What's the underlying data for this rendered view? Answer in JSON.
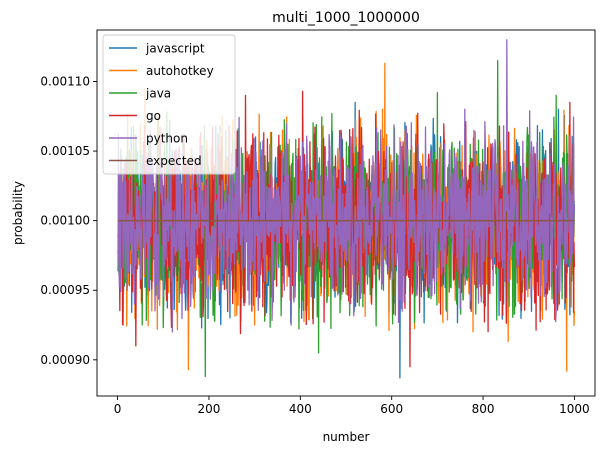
{
  "chart_data": {
    "type": "line",
    "title": "multi_1000_1000000",
    "xlabel": "number",
    "ylabel": "probability",
    "xlim": [
      -45,
      1045
    ],
    "ylim": [
      0.000874,
      0.001137
    ],
    "xticks": [
      0,
      200,
      400,
      600,
      800,
      1000
    ],
    "xtick_labels": [
      "0",
      "200",
      "400",
      "600",
      "800",
      "1000"
    ],
    "yticks": [
      0.0009,
      0.00095,
      0.001,
      0.00105,
      0.0011
    ],
    "ytick_labels": [
      "0.00090",
      "0.00095",
      "0.00100",
      "0.00105",
      "0.00110"
    ],
    "grid": false,
    "legend_position": "top-left",
    "x_range": [
      1,
      1000
    ],
    "series": [
      {
        "name": "javascript",
        "color": "#1f77b4",
        "band": [
          0.000955,
          0.001045
        ],
        "extremes": [
          {
            "x": 618,
            "y": 0.000887
          },
          {
            "x": 12,
            "y": 0.000925
          },
          {
            "x": 520,
            "y": 0.001085
          },
          {
            "x": 965,
            "y": 0.00108
          },
          {
            "x": 120,
            "y": 0.00105
          }
        ]
      },
      {
        "name": "autohotkey",
        "color": "#ff7f0e",
        "band": [
          0.000953,
          0.001047
        ],
        "extremes": [
          {
            "x": 585,
            "y": 0.001113
          },
          {
            "x": 155,
            "y": 0.000893
          },
          {
            "x": 983,
            "y": 0.000892
          },
          {
            "x": 60,
            "y": 0.001095
          },
          {
            "x": 300,
            "y": 0.000925
          }
        ]
      },
      {
        "name": "java",
        "color": "#2ca02c",
        "band": [
          0.000953,
          0.001047
        ],
        "extremes": [
          {
            "x": 192,
            "y": 0.000888
          },
          {
            "x": 832,
            "y": 0.001115
          },
          {
            "x": 440,
            "y": 0.000905
          },
          {
            "x": 700,
            "y": 0.001092
          },
          {
            "x": 960,
            "y": 0.00109
          }
        ]
      },
      {
        "name": "go",
        "color": "#d62728",
        "band": [
          0.000953,
          0.001047
        ],
        "extremes": [
          {
            "x": 640,
            "y": 0.000895
          },
          {
            "x": 40,
            "y": 0.00091
          },
          {
            "x": 405,
            "y": 0.001093
          },
          {
            "x": 990,
            "y": 0.001085
          },
          {
            "x": 280,
            "y": 0.00109
          }
        ]
      },
      {
        "name": "python",
        "color": "#9467bd",
        "band": [
          0.000957,
          0.001043
        ],
        "extremes": [
          {
            "x": 852,
            "y": 0.00113
          },
          {
            "x": 380,
            "y": 0.000925
          },
          {
            "x": 120,
            "y": 0.00092
          },
          {
            "x": 760,
            "y": 0.00108
          }
        ]
      },
      {
        "name": "expected",
        "color": "#8c564b",
        "x": [
          1,
          1000
        ],
        "y": [
          0.001,
          0.001
        ]
      }
    ]
  }
}
